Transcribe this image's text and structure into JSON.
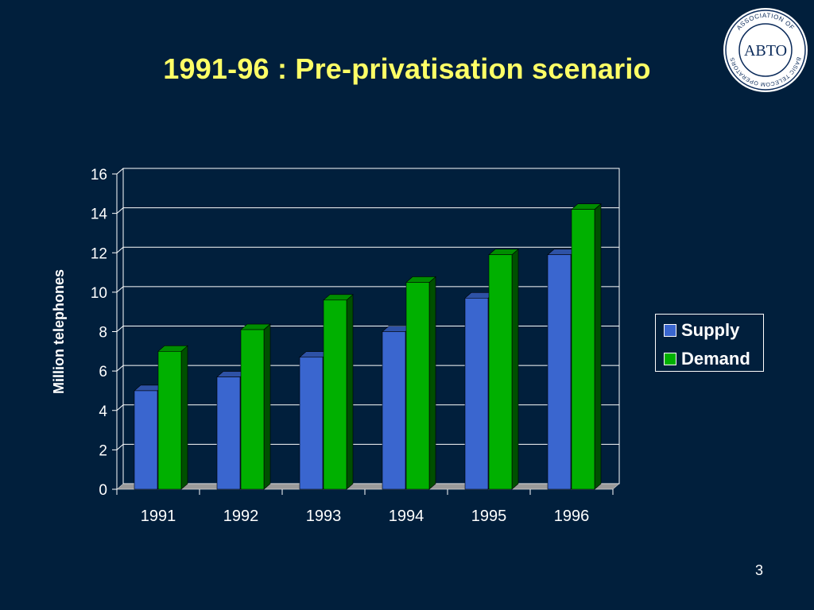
{
  "slide": {
    "title": "1991-96 : Pre-privatisation scenario",
    "page_number": "3",
    "background": "#011f3c",
    "title_color": "#ffff66"
  },
  "logo": {
    "acronym": "ABTO",
    "ring_text": "ASSOCIATION OF BASIC TELECOM OPERATORS"
  },
  "chart_data": {
    "type": "bar",
    "categories": [
      "1991",
      "1992",
      "1993",
      "1994",
      "1995",
      "1996"
    ],
    "series": [
      {
        "name": "Supply",
        "color": "#3a66cf",
        "values": [
          5.0,
          5.7,
          6.7,
          8.0,
          9.7,
          11.9
        ]
      },
      {
        "name": "Demand",
        "color": "#00b000",
        "values": [
          7.0,
          8.1,
          9.6,
          10.5,
          11.9,
          14.2
        ]
      }
    ],
    "ylabel": "Million telephones",
    "xlabel": "",
    "ylim": [
      0,
      16
    ],
    "yticks": [
      0,
      2,
      4,
      6,
      8,
      10,
      12,
      14,
      16
    ],
    "grid": true,
    "legend_position": "right",
    "three_d": true
  }
}
